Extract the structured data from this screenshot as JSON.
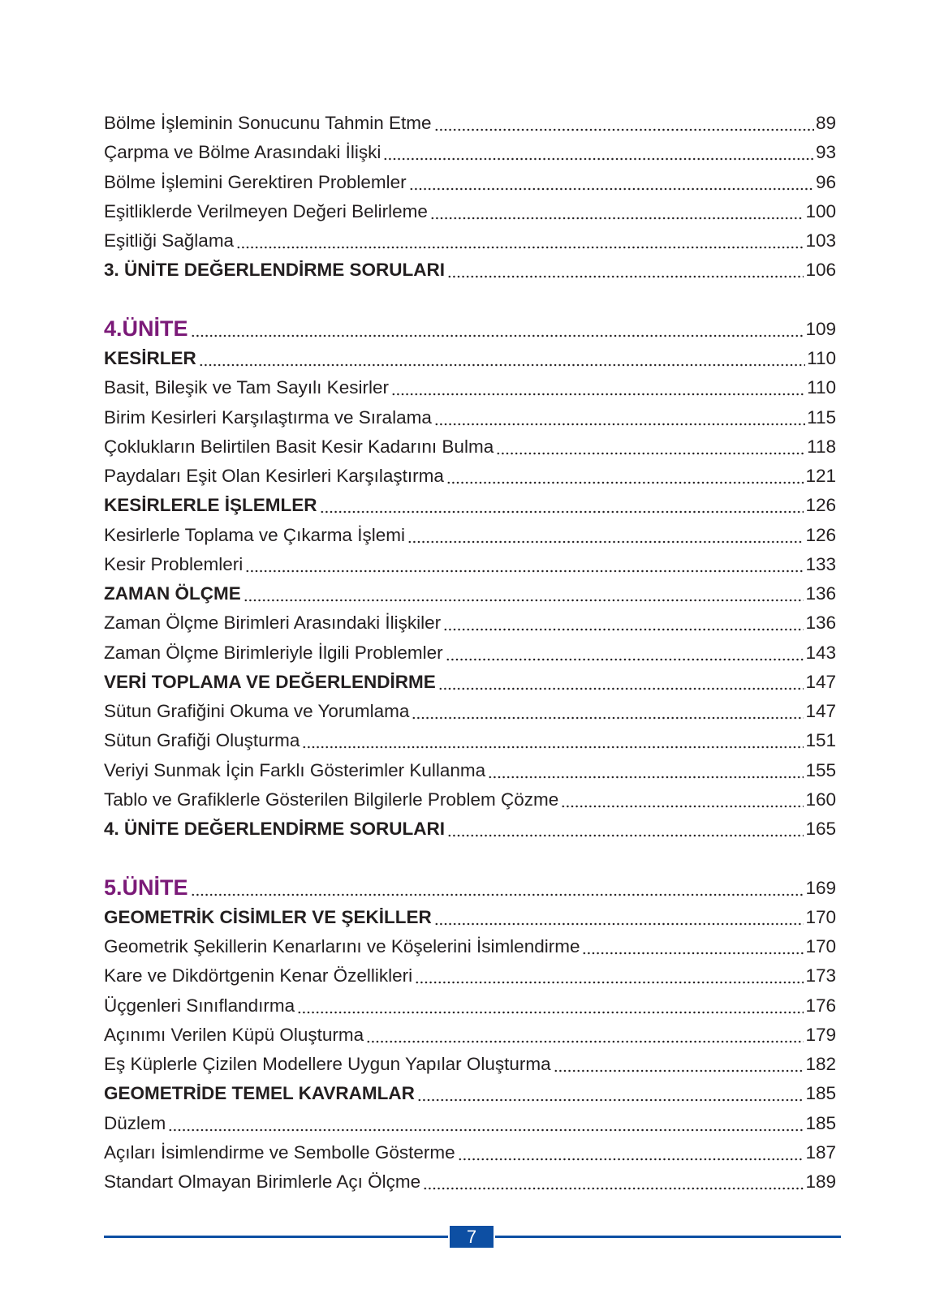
{
  "toc": [
    {
      "title": "Bölme İşleminin Sonucunu Tahmin Etme",
      "page": "89",
      "style": "normal"
    },
    {
      "title": "Çarpma ve Bölme Arasındaki İlişki",
      "page": "93",
      "style": "normal"
    },
    {
      "title": "Bölme İşlemini Gerektiren Problemler",
      "page": "96",
      "style": "normal"
    },
    {
      "title": "Eşitliklerde Verilmeyen Değeri Belirleme",
      "page": "100",
      "style": "normal"
    },
    {
      "title": "Eşitliği Sağlama",
      "page": "103",
      "style": "normal"
    },
    {
      "title": "3. ÜNİTE DEĞERLENDİRME SORULARI",
      "page": "106",
      "style": "bold"
    },
    {
      "blank": true
    },
    {
      "title": "4.ÜNİTE",
      "page": "109",
      "style": "unit"
    },
    {
      "title": "KESİRLER",
      "page": "110",
      "style": "bold"
    },
    {
      "title": "Basit, Bileşik ve Tam Sayılı Kesirler",
      "page": "110",
      "style": "normal"
    },
    {
      "title": "Birim Kesirleri Karşılaştırma ve Sıralama",
      "page": "115",
      "style": "normal"
    },
    {
      "title": "Çoklukların Belirtilen Basit Kesir Kadarını Bulma",
      "page": "118",
      "style": "normal"
    },
    {
      "title": "Paydaları Eşit Olan Kesirleri Karşılaştırma",
      "page": "121",
      "style": "normal"
    },
    {
      "title": "KESİRLERLE İŞLEMLER",
      "page": "126",
      "style": "bold"
    },
    {
      "title": "Kesirlerle Toplama ve Çıkarma İşlemi",
      "page": "126",
      "style": "normal"
    },
    {
      "title": "Kesir Problemleri",
      "page": "133",
      "style": "normal"
    },
    {
      "title": "ZAMAN ÖLÇME",
      "page": "136",
      "style": "bold"
    },
    {
      "title": "Zaman Ölçme Birimleri Arasındaki İlişkiler",
      "page": "136",
      "style": "normal"
    },
    {
      "title": "Zaman Ölçme Birimleriyle İlgili Problemler",
      "page": "143",
      "style": "normal"
    },
    {
      "title": "VERİ TOPLAMA VE DEĞERLENDİRME",
      "page": "147",
      "style": "bold"
    },
    {
      "title": "Sütun Grafiğini Okuma ve Yorumlama",
      "page": "147",
      "style": "normal"
    },
    {
      "title": "Sütun Grafiği Oluşturma",
      "page": "151",
      "style": "normal"
    },
    {
      "title": "Veriyi Sunmak İçin Farklı Gösterimler Kullanma",
      "page": "155",
      "style": "normal"
    },
    {
      "title": "Tablo ve Grafiklerle Gösterilen Bilgilerle Problem Çözme",
      "page": "160",
      "style": "normal"
    },
    {
      "title": "4. ÜNİTE DEĞERLENDİRME SORULARI",
      "page": "165",
      "style": "bold"
    },
    {
      "blank": true
    },
    {
      "title": "5.ÜNİTE",
      "page": "169",
      "style": "unit"
    },
    {
      "title": "GEOMETRİK CİSİMLER VE ŞEKİLLER",
      "page": "170",
      "style": "bold"
    },
    {
      "title": "Geometrik Şekillerin Kenarlarını ve Köşelerini İsimlendirme",
      "page": "170",
      "style": "normal"
    },
    {
      "title": "Kare ve Dikdörtgenin Kenar Özellikleri",
      "page": "173",
      "style": "normal"
    },
    {
      "title": "Üçgenleri Sınıflandırma",
      "page": "176",
      "style": "normal"
    },
    {
      "title": "Açınımı Verilen Küpü Oluşturma",
      "page": "179",
      "style": "normal"
    },
    {
      "title": "Eş Küplerle Çizilen Modellere Uygun Yapılar Oluşturma",
      "page": "182",
      "style": "normal"
    },
    {
      "title": "GEOMETRİDE TEMEL KAVRAMLAR",
      "page": "185",
      "style": "bold"
    },
    {
      "title": "Düzlem",
      "page": "185",
      "style": "normal"
    },
    {
      "title": "Açıları İsimlendirme ve Sembolle Gösterme",
      "page": "187",
      "style": "normal"
    },
    {
      "title": "Standart Olmayan Birimlerle Açı Ölçme",
      "page": "189",
      "style": "normal"
    }
  ],
  "footer": {
    "page_number": "7"
  },
  "colors": {
    "unit_heading": "#7b1a78",
    "footer_accent": "#0d4fa3",
    "text": "#231f20"
  }
}
